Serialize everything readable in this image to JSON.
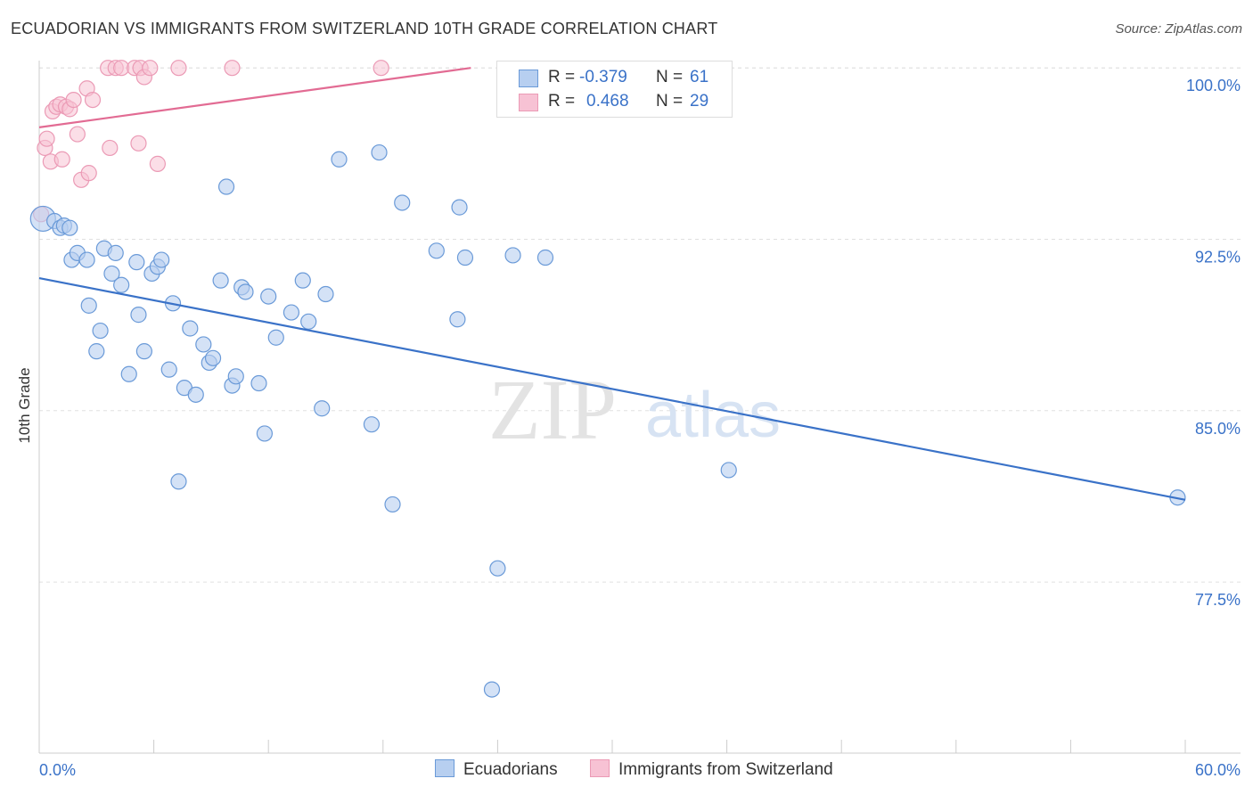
{
  "header": {
    "title": "ECUADORIAN VS IMMIGRANTS FROM SWITZERLAND 10TH GRADE CORRELATION CHART",
    "source": "Source: ZipAtlas.com"
  },
  "watermark": {
    "zip": "ZIP",
    "atlas": "atlas"
  },
  "legend": {
    "r_label": "R =",
    "n_label": "N =",
    "rows": [
      {
        "name": "Ecuadorians",
        "r": "-0.379",
        "n": "61"
      },
      {
        "name": "Immigrants from Switzerland",
        "r": "0.468",
        "n": "29"
      }
    ]
  },
  "colors": {
    "blue": "#3a72c8",
    "blue_fill": "#b7cff0",
    "blue_stroke": "#6a9ad8",
    "pink": "#e26b93",
    "pink_fill": "#f7c2d4",
    "pink_stroke": "#eb9ab5",
    "grid": "#e0e0e0"
  },
  "chart_data": {
    "type": "scatter",
    "title": "ECUADORIAN VS IMMIGRANTS FROM SWITZERLAND 10TH GRADE CORRELATION CHART",
    "xlabel": "",
    "ylabel": "10th Grade",
    "xlim": [
      0,
      60
    ],
    "ylim": [
      70.6,
      101.1
    ],
    "x_tick_labels": [
      "0.0%",
      "60.0%"
    ],
    "y_ticks": [
      77.5,
      85.0,
      92.5,
      100.0
    ],
    "y_tick_labels": [
      "77.5%",
      "85.0%",
      "92.5%",
      "100.0%"
    ],
    "grid": true,
    "series": [
      {
        "name": "Ecuadorians",
        "color": "#3a72c8",
        "trend": {
          "x": [
            0,
            60
          ],
          "y": [
            90.8,
            81.1
          ]
        },
        "points": [
          [
            0.2,
            93.4
          ],
          [
            0.8,
            93.3
          ],
          [
            1.1,
            93.0
          ],
          [
            1.3,
            93.1
          ],
          [
            1.6,
            93.0
          ],
          [
            1.7,
            91.6
          ],
          [
            2.0,
            91.9
          ],
          [
            2.5,
            91.6
          ],
          [
            2.6,
            89.6
          ],
          [
            3.2,
            88.5
          ],
          [
            3.0,
            87.6
          ],
          [
            3.4,
            92.1
          ],
          [
            3.8,
            91.0
          ],
          [
            4.0,
            91.9
          ],
          [
            4.3,
            90.5
          ],
          [
            4.7,
            86.6
          ],
          [
            5.1,
            91.5
          ],
          [
            5.2,
            89.2
          ],
          [
            5.5,
            87.6
          ],
          [
            5.9,
            91.0
          ],
          [
            6.2,
            91.3
          ],
          [
            6.4,
            91.6
          ],
          [
            6.8,
            86.8
          ],
          [
            7.0,
            89.7
          ],
          [
            7.3,
            81.9
          ],
          [
            7.6,
            86.0
          ],
          [
            7.9,
            88.6
          ],
          [
            8.2,
            85.7
          ],
          [
            8.6,
            87.9
          ],
          [
            8.9,
            87.1
          ],
          [
            9.1,
            87.3
          ],
          [
            9.5,
            90.7
          ],
          [
            9.8,
            94.8
          ],
          [
            10.1,
            86.1
          ],
          [
            10.3,
            86.5
          ],
          [
            10.6,
            90.4
          ],
          [
            10.8,
            90.2
          ],
          [
            11.5,
            86.2
          ],
          [
            11.8,
            84.0
          ],
          [
            12.0,
            90.0
          ],
          [
            12.4,
            88.2
          ],
          [
            13.2,
            89.3
          ],
          [
            13.8,
            90.7
          ],
          [
            14.1,
            88.9
          ],
          [
            14.8,
            85.1
          ],
          [
            15.0,
            90.1
          ],
          [
            15.7,
            96.0
          ],
          [
            17.4,
            84.4
          ],
          [
            17.8,
            96.3
          ],
          [
            18.5,
            80.9
          ],
          [
            19.0,
            94.1
          ],
          [
            20.8,
            92.0
          ],
          [
            21.9,
            89.0
          ],
          [
            22.0,
            93.9
          ],
          [
            22.3,
            91.7
          ],
          [
            23.7,
            72.8
          ],
          [
            24.0,
            78.1
          ],
          [
            24.8,
            91.8
          ],
          [
            26.5,
            91.7
          ],
          [
            36.1,
            82.4
          ],
          [
            59.6,
            81.2
          ]
        ]
      },
      {
        "name": "Immigrants from Switzerland",
        "color": "#e26b93",
        "trend": {
          "x": [
            0,
            22.6
          ],
          "y": [
            97.4,
            100.0
          ]
        },
        "points": [
          [
            0.1,
            93.6
          ],
          [
            0.3,
            96.5
          ],
          [
            0.4,
            96.9
          ],
          [
            0.6,
            95.9
          ],
          [
            0.7,
            98.1
          ],
          [
            0.9,
            98.3
          ],
          [
            1.1,
            98.4
          ],
          [
            1.2,
            96.0
          ],
          [
            1.4,
            98.3
          ],
          [
            1.6,
            98.2
          ],
          [
            1.8,
            98.6
          ],
          [
            2.0,
            97.1
          ],
          [
            2.2,
            95.1
          ],
          [
            2.5,
            99.1
          ],
          [
            2.6,
            95.4
          ],
          [
            2.8,
            98.6
          ],
          [
            3.6,
            100.0
          ],
          [
            3.7,
            96.5
          ],
          [
            4.0,
            100.0
          ],
          [
            4.3,
            100.0
          ],
          [
            5.0,
            100.0
          ],
          [
            5.2,
            96.7
          ],
          [
            5.3,
            100.0
          ],
          [
            5.5,
            99.6
          ],
          [
            5.8,
            100.0
          ],
          [
            6.2,
            95.8
          ],
          [
            7.3,
            100.0
          ],
          [
            10.1,
            100.0
          ],
          [
            17.9,
            100.0
          ]
        ]
      }
    ]
  }
}
